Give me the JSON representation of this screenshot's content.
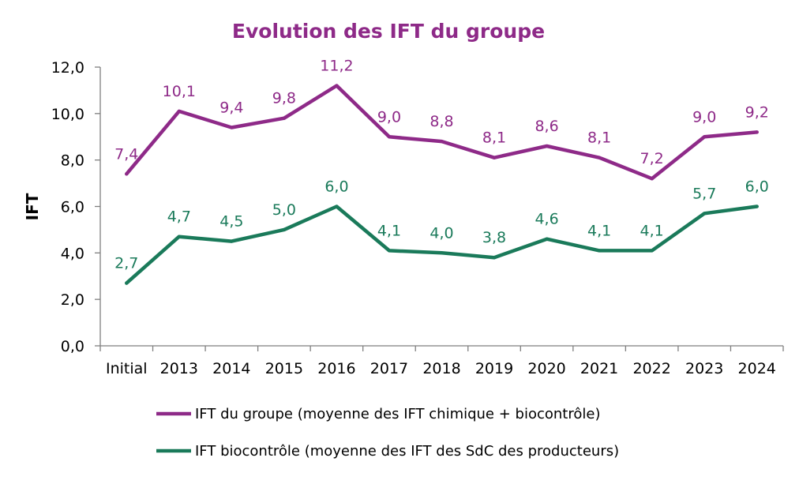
{
  "chart_data": {
    "type": "line",
    "title": "Evolution des IFT du groupe",
    "xlabel": "",
    "ylabel": "IFT",
    "categories": [
      "Initial",
      "2013",
      "2014",
      "2015",
      "2016",
      "2017",
      "2018",
      "2019",
      "2020",
      "2021",
      "2022",
      "2023",
      "2024"
    ],
    "y_tick_labels": [
      "0,0",
      "2,0",
      "4,0",
      "6,0",
      "8,0",
      "10,0",
      "12,0"
    ],
    "ylim": [
      0,
      12
    ],
    "grid": false,
    "legend_position": "bottom",
    "series": [
      {
        "name": "IFT du groupe (moyenne des IFT chimique + biocontrôle)",
        "color": "#8e2a88",
        "values": [
          7.4,
          10.1,
          9.4,
          9.8,
          11.2,
          9.0,
          8.8,
          8.1,
          8.6,
          8.1,
          7.2,
          9.0,
          9.2
        ],
        "labels": [
          "7,4",
          "10,1",
          "9,4",
          "9,8",
          "11,2",
          "9,0",
          "8,8",
          "8,1",
          "8,6",
          "8,1",
          "7,2",
          "9,0",
          "9,2"
        ]
      },
      {
        "name": "IFT biocontrôle (moyenne des IFT des SdC des producteurs)",
        "color": "#1a7a5a",
        "values": [
          2.7,
          4.7,
          4.5,
          5.0,
          6.0,
          4.1,
          4.0,
          3.8,
          4.6,
          4.1,
          4.1,
          5.7,
          6.0
        ],
        "labels": [
          "2,7",
          "4,7",
          "4,5",
          "5,0",
          "6,0",
          "4,1",
          "4,0",
          "3,8",
          "4,6",
          "4,1",
          "4,1",
          "5,7",
          "6,0"
        ]
      }
    ],
    "title_color": "#8e2a88",
    "axis_color": "#7f7f7f"
  }
}
